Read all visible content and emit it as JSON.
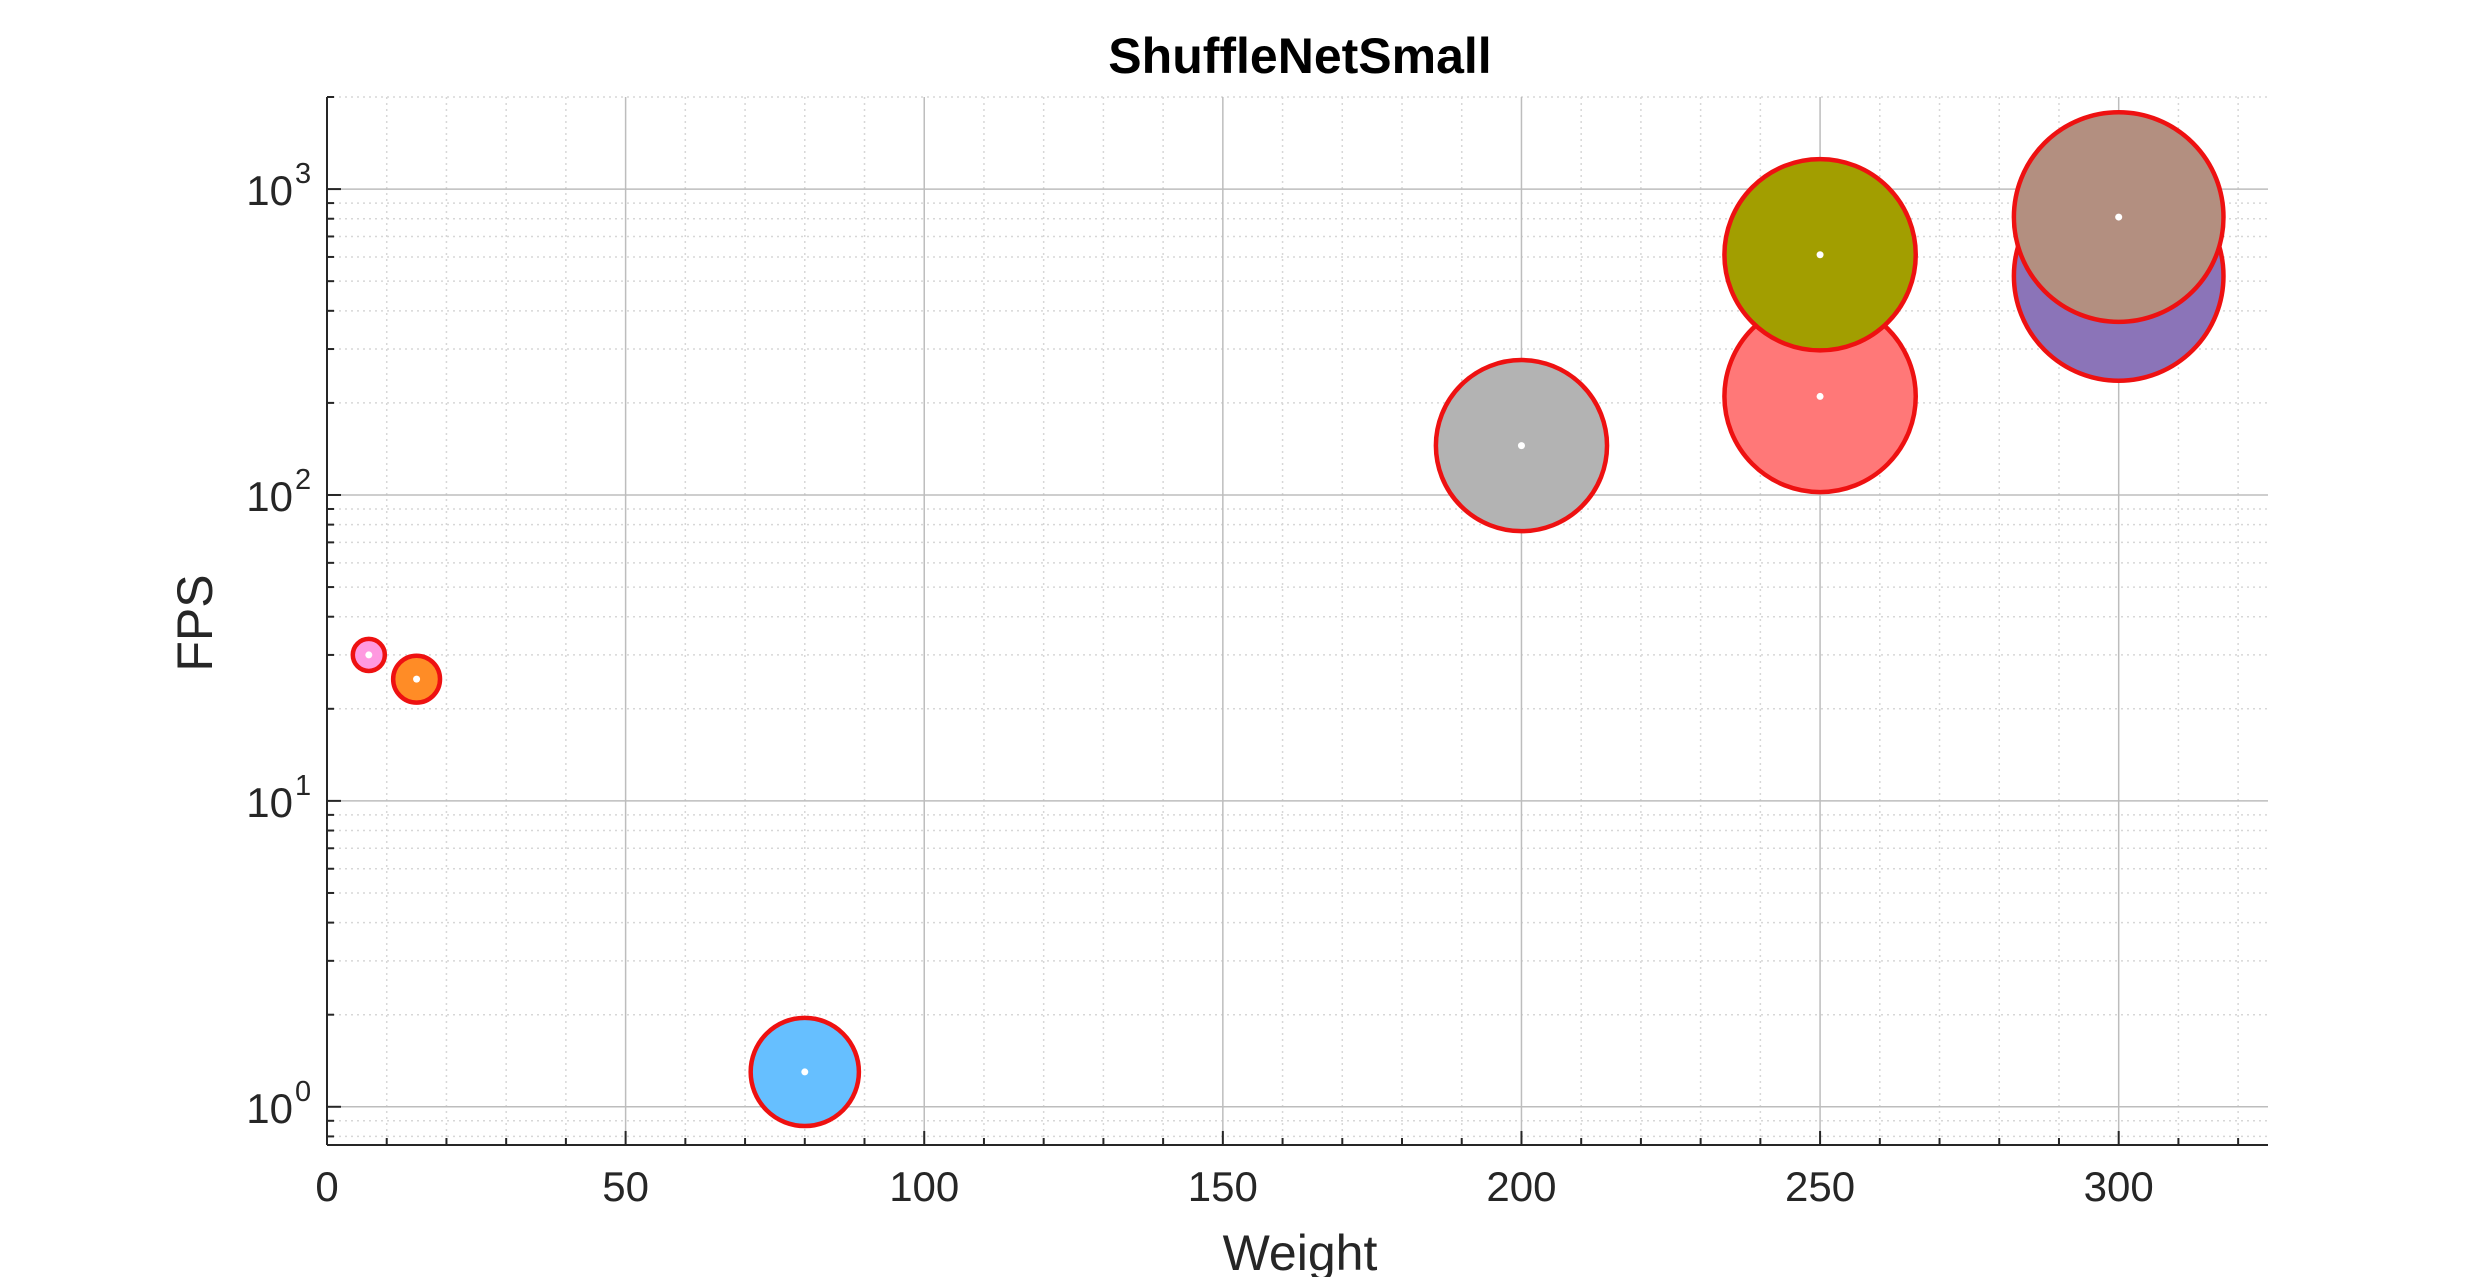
{
  "chart_data": {
    "type": "scatter",
    "title": "ShuffleNetSmall",
    "xlabel": "Weight",
    "ylabel": "FPS",
    "xlim": [
      0,
      325
    ],
    "ylim": [
      0.75,
      2000
    ],
    "yscale": "log",
    "grid": true,
    "minor_grid": true,
    "x_ticks": [
      "0",
      "50",
      "100",
      "150",
      "200",
      "250",
      "300"
    ],
    "y_ticks": [
      {
        "base": "10",
        "exp": "0"
      },
      {
        "base": "10",
        "exp": "1"
      },
      {
        "base": "10",
        "exp": "2"
      },
      {
        "base": "10",
        "exp": "3"
      }
    ],
    "marker_edge_color": "#ee1111",
    "points": [
      {
        "x": 300,
        "y": 520,
        "size": 300,
        "color": "#8b74b8"
      },
      {
        "x": 300,
        "y": 810,
        "size": 300,
        "color": "#b38f80"
      },
      {
        "x": 250,
        "y": 210,
        "size": 250,
        "color": "#ff7878"
      },
      {
        "x": 250,
        "y": 610,
        "size": 250,
        "color": "#a29e00"
      },
      {
        "x": 200,
        "y": 145,
        "size": 200,
        "color": "#b3b3b3"
      },
      {
        "x": 80,
        "y": 1.3,
        "size": 80,
        "color": "#66bfff"
      },
      {
        "x": 15,
        "y": 25,
        "size": 15,
        "color": "#ff8c26"
      },
      {
        "x": 7,
        "y": 30,
        "size": 7,
        "color": "#ff99e0"
      }
    ]
  }
}
